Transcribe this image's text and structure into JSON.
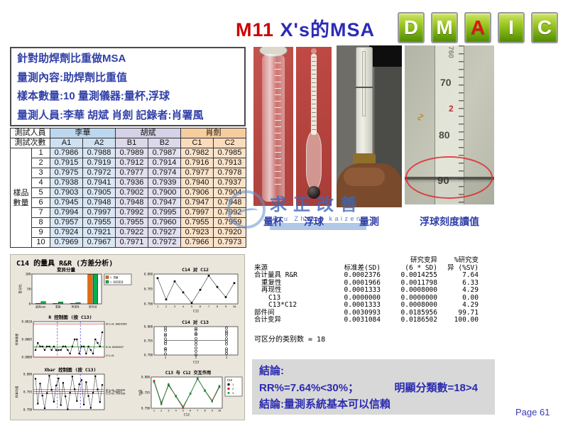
{
  "header": {
    "title_prefix": "M11",
    "title_main": " X's的MSA"
  },
  "dmaic": {
    "letters": [
      "D",
      "M",
      "A",
      "I",
      "C"
    ],
    "highlight_index": 2
  },
  "colors": {
    "title-red": "#CC0000",
    "title-blue": "#2B2BB8",
    "text-blue": "#3140A8",
    "dmaic-red": "#E01414",
    "table-blue": "#BDD7EE",
    "table-purple": "#D5D1E6",
    "table-peach": "#F7CD9F",
    "panel-beige": "#EAE6DC",
    "conclusion-gray": "#D8D8D8",
    "bar-orange": "#E36C09",
    "bar-green": "#00B050"
  },
  "info_box": {
    "lines": [
      "針對助焊劑比重做MSA",
      "量測內容:助焊劑比重值",
      "樣本數量:10  量測儀器:量杯,浮球",
      "量測人員:李華 胡斌 肖劍 記錄者:肖署風"
    ]
  },
  "measurement_table": {
    "corner_top": "測試人員",
    "corner_bottom": "測試次數",
    "side_label": "樣品數量",
    "operators": [
      {
        "name": "李華",
        "cols": [
          "A1",
          "A2"
        ]
      },
      {
        "name": "胡斌",
        "cols": [
          "B1",
          "B2"
        ]
      },
      {
        "name": "肖劍",
        "cols": [
          "C1",
          "C2"
        ]
      }
    ],
    "rows": [
      {
        "n": "1",
        "values": [
          "0.7986",
          "0.7988",
          "0.7989",
          "0.7987",
          "0.7982",
          "0.7985"
        ]
      },
      {
        "n": "2",
        "values": [
          "0.7915",
          "0.7919",
          "0.7912",
          "0.7914",
          "0.7916",
          "0.7913"
        ]
      },
      {
        "n": "3",
        "values": [
          "0.7975",
          "0.7972",
          "0.7977",
          "0.7974",
          "0.7977",
          "0.7978"
        ]
      },
      {
        "n": "4",
        "values": [
          "0.7938",
          "0.7941",
          "0.7936",
          "0.7939",
          "0.7940",
          "0.7937"
        ]
      },
      {
        "n": "5",
        "values": [
          "0.7903",
          "0.7905",
          "0.7902",
          "0.7900",
          "0.7906",
          "0.7904"
        ]
      },
      {
        "n": "6",
        "values": [
          "0.7945",
          "0.7948",
          "0.7948",
          "0.7947",
          "0.7947",
          "0.7948"
        ]
      },
      {
        "n": "7",
        "values": [
          "0.7994",
          "0.7997",
          "0.7992",
          "0.7995",
          "0.7997",
          "0.7992"
        ]
      },
      {
        "n": "8",
        "values": [
          "0.7957",
          "0.7955",
          "0.7955",
          "0.7960",
          "0.7955",
          "0.7959"
        ]
      },
      {
        "n": "9",
        "values": [
          "0.7924",
          "0.7921",
          "0.7922",
          "0.7927",
          "0.7923",
          "0.7920"
        ]
      },
      {
        "n": "10",
        "values": [
          "0.7969",
          "0.7967",
          "0.7971",
          "0.7972",
          "0.7966",
          "0.7973"
        ]
      }
    ]
  },
  "photos": [
    {
      "label": "量杯"
    },
    {
      "label": "浮球"
    },
    {
      "label": "量測"
    },
    {
      "label": "浮球刻度讀值",
      "scale_numbers": [
        "760",
        "70",
        "2",
        "80",
        "90"
      ]
    }
  ],
  "watermark": {
    "main": "求正改善",
    "sub": "Qiu Zheng kaizen"
  },
  "minitab": {
    "title": "C14 的量具 R&R (方差分析)"
  },
  "stats": {
    "header_row1": {
      "col3": "研究变异",
      "col4": "%研究变"
    },
    "header_row2": {
      "col1": "来源",
      "col2": "标准差(SD)",
      "col3": "(6 * SD)",
      "col4": "异 (%SV)"
    },
    "rows": [
      {
        "source": "合计量具 R&R",
        "indent": 0,
        "sd": "0.0002376",
        "sv": "0.0014255",
        "pct": "7.64"
      },
      {
        "source": "重复性",
        "indent": 1,
        "sd": "0.0001966",
        "sv": "0.0011798",
        "pct": "6.33"
      },
      {
        "source": "再现性",
        "indent": 1,
        "sd": "0.0001333",
        "sv": "0.0008000",
        "pct": "4.29"
      },
      {
        "source": "C13",
        "indent": 2,
        "sd": "0.0000000",
        "sv": "0.0000000",
        "pct": "0.00"
      },
      {
        "source": "C13*C12",
        "indent": 2,
        "sd": "0.0001333",
        "sv": "0.0008000",
        "pct": "4.29"
      },
      {
        "source": "部件间",
        "indent": 0,
        "sd": "0.0030993",
        "sv": "0.0185956",
        "pct": "99.71"
      },
      {
        "source": "合计变异",
        "indent": 0,
        "sd": "0.0031084",
        "sv": "0.0186502",
        "pct": "100.00"
      }
    ],
    "distinct_categories": "可区分的类别数 = 18"
  },
  "conclusion": {
    "line1": "結論:",
    "line2_left": "RR%=7.64%<30%；",
    "line2_right": "明顯分類數=18>4",
    "line3": "結論:量測系統基本可以信賴"
  },
  "footer": {
    "page": "Page 61"
  },
  "chart_data": [
    {
      "id": "variation-components",
      "type": "bar",
      "title": "变异分量",
      "ylabel": "百分比",
      "yticks": [
        {
          "v": 0,
          "t": "0"
        },
        {
          "v": 50,
          "t": "50"
        },
        {
          "v": 100,
          "t": "100"
        }
      ],
      "categories": [
        "量具R&R",
        "重复",
        "再现性",
        "部件间"
      ],
      "series": [
        {
          "name": "% 贡献",
          "color": "#E36C09",
          "values": [
            0.58,
            0.39,
            0.18,
            99.42
          ]
        },
        {
          "name": "% 研究变异",
          "color": "#00B050",
          "values": [
            7.64,
            6.33,
            4.29,
            99.71
          ]
        }
      ],
      "legend_position": "right",
      "grid": false
    },
    {
      "id": "c14-by-c12",
      "type": "line",
      "title": "C14 对 C12",
      "xlabel": "C12",
      "ylim": [
        0.79,
        0.8
      ],
      "yticks": [
        {
          "v": 0.8,
          "t": "0.800"
        },
        {
          "v": 0.795,
          "t": "0.795"
        },
        {
          "v": 0.79,
          "t": "0.790"
        }
      ],
      "x": [
        "1",
        "2",
        "3",
        "4",
        "5",
        "6",
        "7",
        "8",
        "9",
        "10"
      ],
      "values": [
        0.79862,
        0.79148,
        0.79755,
        0.79385,
        0.79033,
        0.79472,
        0.79945,
        0.79568,
        0.79228,
        0.79697
      ]
    },
    {
      "id": "r-chart",
      "type": "control",
      "title": "R 控制图 (按 C13)",
      "ylabel": "样本极差",
      "ylim": [
        0,
        0.001
      ],
      "yticks": [
        {
          "v": 0.001,
          "t": "0.0010"
        },
        {
          "v": 0.0005,
          "t": "0.0005"
        },
        {
          "v": 0,
          "t": "0.0000"
        }
      ],
      "ucl": {
        "label": "UCL=0.0009366",
        "value": 0.0009366
      },
      "center": {
        "label": "R=0.0002867",
        "value": 0.0002867
      },
      "lcl": {
        "label": "LCL=0",
        "value": 0
      },
      "values": [
        0.0002,
        0.0004,
        0.0003,
        0.0003,
        0.0002,
        0.0003,
        0.0003,
        0.0002,
        0.0003,
        0.0002,
        0.0002,
        0.0002,
        0.0003,
        0.0003,
        0.0002,
        0.0001,
        0.0003,
        0.0005,
        0.0005,
        0.0001,
        0.0003,
        0.0003,
        0.0001,
        0.0003,
        0.0002,
        0.0001,
        0.0005,
        0.0004,
        0.0003,
        0.0007
      ]
    },
    {
      "id": "c14-by-c13",
      "type": "dotgroups",
      "title": "C14 对 C13",
      "xlabel": "C13",
      "xcats": [
        "1",
        "2",
        "3"
      ],
      "ylim": [
        0.79,
        0.8
      ],
      "yticks": [
        {
          "v": 0.8,
          "t": "0.800"
        },
        {
          "v": 0.795,
          "t": "0.795"
        },
        {
          "v": 0.79,
          "t": "0.790"
        }
      ],
      "groups": [
        [
          0.7987,
          0.7917,
          0.79735,
          0.79395,
          0.7904,
          0.79465,
          0.79955,
          0.7956,
          0.79225,
          0.7968
        ],
        [
          0.7988,
          0.7913,
          0.79755,
          0.79375,
          0.7901,
          0.79475,
          0.79935,
          0.79575,
          0.79245,
          0.79715
        ],
        [
          0.79835,
          0.79145,
          0.79775,
          0.79385,
          0.7905,
          0.79475,
          0.79945,
          0.7957,
          0.79215,
          0.79695
        ]
      ],
      "group_means": [
        0.7951,
        0.7951,
        0.79509
      ]
    },
    {
      "id": "xbar-chart",
      "type": "control",
      "title": "Xbar 控制图 (按 C13)",
      "ylabel": "样本均值",
      "ylim": [
        0.79,
        0.8
      ],
      "yticks": [
        {
          "v": 0.8,
          "t": "0.800"
        },
        {
          "v": 0.795,
          "t": "0.795"
        },
        {
          "v": 0.79,
          "t": "0.790"
        }
      ],
      "ucl": {
        "label": "UCL=0.795636",
        "value": 0.795636
      },
      "center": {
        "label": "X=0.795097",
        "value": 0.795097
      },
      "lcl": {
        "label": "LCL=0.794558",
        "value": 0.794558
      },
      "values": [
        0.7987,
        0.7917,
        0.79735,
        0.79395,
        0.7904,
        0.79465,
        0.79955,
        0.7956,
        0.79225,
        0.7968,
        0.7988,
        0.7913,
        0.79755,
        0.79375,
        0.7901,
        0.79475,
        0.79935,
        0.79575,
        0.79245,
        0.79715,
        0.79835,
        0.79145,
        0.79775,
        0.79385,
        0.7905,
        0.79475,
        0.79945,
        0.7957,
        0.79215,
        0.79695
      ]
    },
    {
      "id": "interaction",
      "type": "multiline",
      "title": "C13 与 C12 交互作用",
      "xlabel": "C12",
      "ylabel": "均值",
      "legend_title": "C13",
      "ylim": [
        0.79,
        0.8
      ],
      "yticks": [
        {
          "v": 0.8,
          "t": "0.800"
        },
        {
          "v": 0.795,
          "t": "0.795"
        },
        {
          "v": 0.79,
          "t": "0.790"
        }
      ],
      "x": [
        "1",
        "2",
        "3",
        "4",
        "5",
        "6",
        "7",
        "8",
        "9",
        "10"
      ],
      "series": [
        {
          "name": "1",
          "color": "#000000",
          "marker": "square",
          "values": [
            0.7987,
            0.7917,
            0.79735,
            0.79395,
            0.7904,
            0.79465,
            0.79955,
            0.7956,
            0.79225,
            0.7968
          ]
        },
        {
          "name": "2",
          "color": "#CC2222",
          "marker": "square",
          "values": [
            0.7988,
            0.7913,
            0.79755,
            0.79375,
            0.7901,
            0.79475,
            0.79935,
            0.79575,
            0.79245,
            0.79715
          ]
        },
        {
          "name": "3",
          "color": "#00A040",
          "marker": "circle",
          "values": [
            0.79835,
            0.79145,
            0.79775,
            0.79385,
            0.7905,
            0.79475,
            0.79945,
            0.7957,
            0.79215,
            0.79695
          ]
        }
      ]
    }
  ]
}
